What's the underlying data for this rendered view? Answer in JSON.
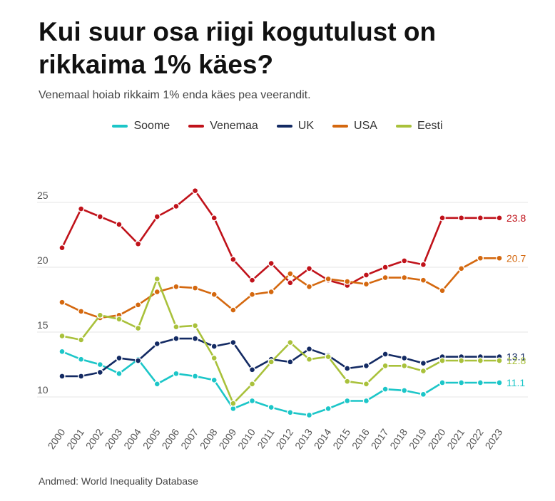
{
  "chart_data": {
    "type": "line",
    "title": "Kui suur osa riigi kogutulust on rikkaima 1% käes?",
    "subtitle": "Venemaal hoiab rikkaim 1% enda käes pea veerandit.",
    "source": "Andmed: World Inequality Database",
    "xlabel": "",
    "ylabel": "",
    "x": [
      "2000",
      "2001",
      "2002",
      "2003",
      "2004",
      "2005",
      "2006",
      "2007",
      "2008",
      "2009",
      "2010",
      "2011",
      "2012",
      "2013",
      "2014",
      "2015",
      "2016",
      "2017",
      "2018",
      "2019",
      "2020",
      "2021",
      "2022",
      "2023"
    ],
    "yticks": [
      10,
      15,
      20,
      25
    ],
    "ylim": [
      9,
      26
    ],
    "grid": true,
    "legend_position": "top-center",
    "series": [
      {
        "name": "Soome",
        "color": "#1cc6c8",
        "end_label": "11.1",
        "values": [
          13.5,
          12.9,
          12.5,
          11.8,
          12.9,
          11.0,
          11.8,
          11.6,
          11.3,
          9.1,
          9.7,
          9.2,
          8.8,
          8.6,
          9.1,
          9.7,
          9.7,
          10.6,
          10.5,
          10.2,
          11.1,
          11.1,
          11.1,
          11.1
        ]
      },
      {
        "name": "Venemaa",
        "color": "#c0121a",
        "end_label": "23.8",
        "values": [
          21.5,
          24.5,
          23.9,
          23.3,
          21.8,
          23.9,
          24.7,
          25.9,
          23.8,
          20.6,
          19.0,
          20.3,
          18.8,
          19.9,
          19.0,
          18.6,
          19.4,
          20.0,
          20.5,
          20.2,
          23.8,
          23.8,
          23.8,
          23.8
        ]
      },
      {
        "name": "UK",
        "color": "#132a63",
        "end_label": "13.1",
        "values": [
          11.6,
          11.6,
          11.9,
          13.0,
          12.8,
          14.1,
          14.5,
          14.5,
          13.9,
          14.2,
          12.1,
          12.9,
          12.7,
          13.7,
          13.2,
          12.2,
          12.4,
          13.3,
          13.0,
          12.6,
          13.1,
          13.1,
          13.1,
          13.1
        ]
      },
      {
        "name": "USA",
        "color": "#d4680f",
        "end_label": "20.7",
        "values": [
          17.3,
          16.6,
          16.1,
          16.3,
          17.1,
          18.1,
          18.5,
          18.4,
          17.9,
          16.7,
          17.9,
          18.1,
          19.5,
          18.5,
          19.1,
          18.9,
          18.7,
          19.2,
          19.2,
          19.0,
          18.2,
          19.9,
          20.7,
          20.7
        ]
      },
      {
        "name": "Eesti",
        "color": "#a9c13b",
        "end_label": "12.8",
        "values": [
          14.7,
          14.4,
          16.3,
          16.0,
          15.3,
          19.1,
          15.4,
          15.5,
          13.0,
          9.5,
          11.0,
          12.7,
          14.2,
          12.9,
          13.1,
          11.2,
          11.0,
          12.4,
          12.4,
          12.0,
          12.8,
          12.8,
          12.8,
          12.8
        ]
      }
    ]
  }
}
